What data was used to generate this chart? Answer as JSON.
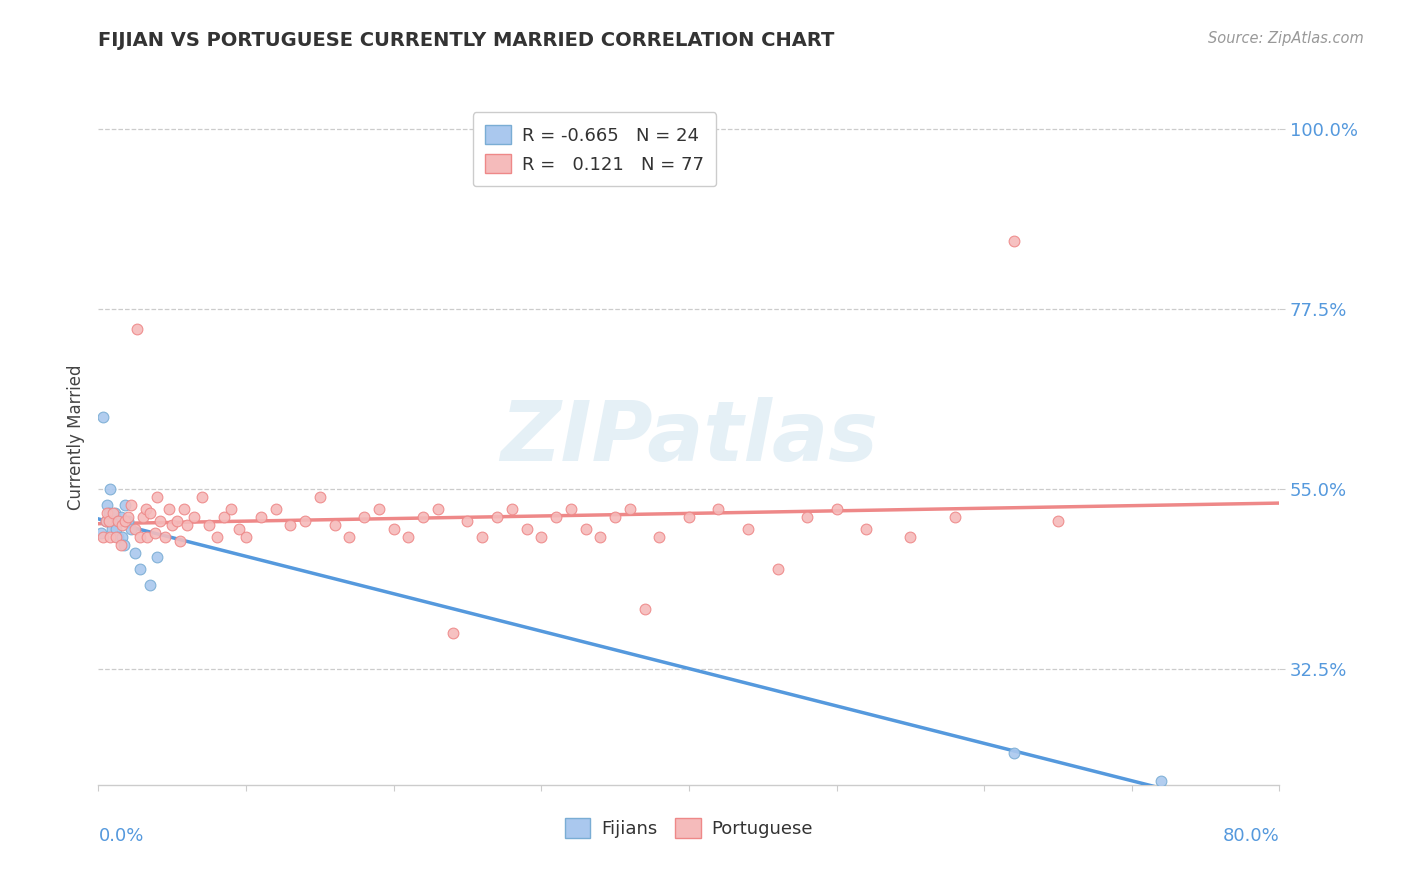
{
  "title": "FIJIAN VS PORTUGUESE CURRENTLY MARRIED CORRELATION CHART",
  "source": "Source: ZipAtlas.com",
  "ylabel": "Currently Married",
  "xlim": [
    0.0,
    0.8
  ],
  "ylim": [
    0.18,
    1.05
  ],
  "yticks": [
    0.325,
    0.55,
    0.775,
    1.0
  ],
  "ytick_labels": [
    "32.5%",
    "55.0%",
    "77.5%",
    "100.0%"
  ],
  "watermark": "ZIPatlas",
  "fijian_line_color": "#5599dd",
  "fijian_fill_color": "#aac8ee",
  "fijian_edge_color": "#7aadd4",
  "port_line_color": "#ee8888",
  "port_fill_color": "#f5bbbb",
  "port_edge_color": "#ee8888",
  "fijian_R": -0.665,
  "fijian_N": 24,
  "portuguese_R": 0.121,
  "portuguese_N": 77,
  "fijian_x": [
    0.002,
    0.003,
    0.005,
    0.006,
    0.007,
    0.008,
    0.009,
    0.01,
    0.011,
    0.012,
    0.013,
    0.014,
    0.015,
    0.016,
    0.017,
    0.018,
    0.02,
    0.022,
    0.025,
    0.028,
    0.035,
    0.04,
    0.62,
    0.72
  ],
  "fijian_y": [
    0.495,
    0.64,
    0.51,
    0.53,
    0.52,
    0.55,
    0.5,
    0.51,
    0.52,
    0.5,
    0.49,
    0.51,
    0.515,
    0.49,
    0.48,
    0.53,
    0.51,
    0.5,
    0.47,
    0.45,
    0.43,
    0.465,
    0.22,
    0.185
  ],
  "port_x": [
    0.003,
    0.005,
    0.006,
    0.007,
    0.008,
    0.01,
    0.012,
    0.013,
    0.015,
    0.016,
    0.018,
    0.02,
    0.022,
    0.025,
    0.026,
    0.028,
    0.03,
    0.032,
    0.033,
    0.035,
    0.038,
    0.04,
    0.042,
    0.045,
    0.048,
    0.05,
    0.053,
    0.055,
    0.058,
    0.06,
    0.065,
    0.07,
    0.075,
    0.08,
    0.085,
    0.09,
    0.095,
    0.1,
    0.11,
    0.12,
    0.13,
    0.14,
    0.15,
    0.16,
    0.17,
    0.18,
    0.19,
    0.2,
    0.21,
    0.22,
    0.23,
    0.24,
    0.25,
    0.26,
    0.27,
    0.28,
    0.29,
    0.3,
    0.31,
    0.32,
    0.33,
    0.34,
    0.35,
    0.36,
    0.37,
    0.38,
    0.4,
    0.42,
    0.44,
    0.46,
    0.48,
    0.5,
    0.52,
    0.55,
    0.58,
    0.62,
    0.65
  ],
  "port_y": [
    0.49,
    0.51,
    0.52,
    0.51,
    0.49,
    0.52,
    0.49,
    0.51,
    0.48,
    0.505,
    0.51,
    0.515,
    0.53,
    0.5,
    0.75,
    0.49,
    0.515,
    0.525,
    0.49,
    0.52,
    0.495,
    0.54,
    0.51,
    0.49,
    0.525,
    0.505,
    0.51,
    0.485,
    0.525,
    0.505,
    0.515,
    0.54,
    0.505,
    0.49,
    0.515,
    0.525,
    0.5,
    0.49,
    0.515,
    0.525,
    0.505,
    0.51,
    0.54,
    0.505,
    0.49,
    0.515,
    0.525,
    0.5,
    0.49,
    0.515,
    0.525,
    0.37,
    0.51,
    0.49,
    0.515,
    0.525,
    0.5,
    0.49,
    0.515,
    0.525,
    0.5,
    0.49,
    0.515,
    0.525,
    0.4,
    0.49,
    0.515,
    0.525,
    0.5,
    0.45,
    0.515,
    0.525,
    0.5,
    0.49,
    0.515,
    0.86,
    0.51
  ],
  "legend_R_color": "#4a8fd4",
  "legend_N_color": "#333333"
}
